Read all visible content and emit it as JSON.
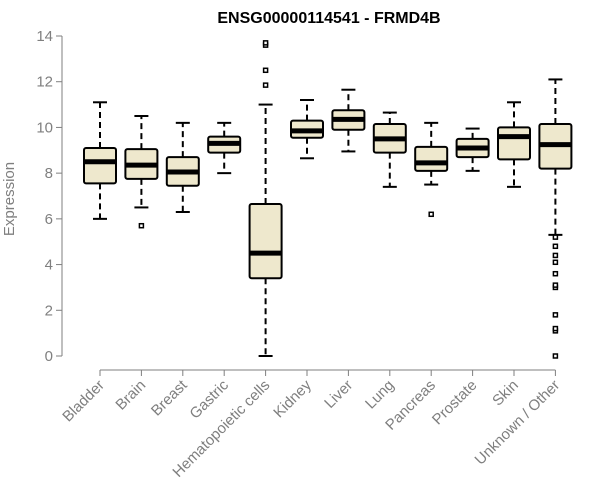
{
  "chart_data": {
    "type": "box",
    "title": "ENSG00000114541 - FRMD4B",
    "ylabel": "Expression",
    "xlabel": "",
    "ylim": [
      0,
      14
    ],
    "yticks": [
      0,
      2,
      4,
      6,
      8,
      10,
      12,
      14
    ],
    "grid": false,
    "box_fill": "#eee8cd",
    "box_stroke": "#000000",
    "categories": [
      "Bladder",
      "Brain",
      "Breast",
      "Gastric",
      "Hematopoietic cells",
      "Kidney",
      "Liver",
      "Lung",
      "Pancreas",
      "Prostate",
      "Skin",
      "Unknown / Other"
    ],
    "boxes": [
      {
        "whisker_low": 6.0,
        "q1": 7.55,
        "median": 8.5,
        "q3": 9.1,
        "whisker_high": 11.1,
        "outliers": []
      },
      {
        "whisker_low": 6.5,
        "q1": 7.75,
        "median": 8.35,
        "q3": 9.05,
        "whisker_high": 10.5,
        "outliers": [
          5.7
        ]
      },
      {
        "whisker_low": 6.3,
        "q1": 7.45,
        "median": 8.05,
        "q3": 8.7,
        "whisker_high": 10.2,
        "outliers": []
      },
      {
        "whisker_low": 8.0,
        "q1": 8.9,
        "median": 9.3,
        "q3": 9.6,
        "whisker_high": 10.2,
        "outliers": []
      },
      {
        "whisker_low": 0.0,
        "q1": 3.4,
        "median": 4.5,
        "q3": 6.65,
        "whisker_high": 11.0,
        "outliers": [
          11.85,
          12.5,
          13.6,
          13.7
        ]
      },
      {
        "whisker_low": 8.65,
        "q1": 9.55,
        "median": 9.85,
        "q3": 10.3,
        "whisker_high": 11.2,
        "outliers": []
      },
      {
        "whisker_low": 8.95,
        "q1": 9.9,
        "median": 10.35,
        "q3": 10.75,
        "whisker_high": 11.65,
        "outliers": []
      },
      {
        "whisker_low": 7.4,
        "q1": 8.9,
        "median": 9.5,
        "q3": 10.15,
        "whisker_high": 10.65,
        "outliers": []
      },
      {
        "whisker_low": 7.5,
        "q1": 8.1,
        "median": 8.45,
        "q3": 9.15,
        "whisker_high": 10.2,
        "outliers": [
          6.2
        ]
      },
      {
        "whisker_low": 8.1,
        "q1": 8.7,
        "median": 9.1,
        "q3": 9.5,
        "whisker_high": 9.95,
        "outliers": []
      },
      {
        "whisker_low": 7.4,
        "q1": 8.6,
        "median": 9.6,
        "q3": 10.0,
        "whisker_high": 11.1,
        "outliers": []
      },
      {
        "whisker_low": 5.3,
        "q1": 8.2,
        "median": 9.25,
        "q3": 10.15,
        "whisker_high": 12.1,
        "outliers": [
          0.0,
          1.1,
          1.2,
          1.8,
          3.0,
          3.1,
          3.6,
          4.1,
          4.4,
          4.8,
          5.2
        ]
      }
    ]
  }
}
